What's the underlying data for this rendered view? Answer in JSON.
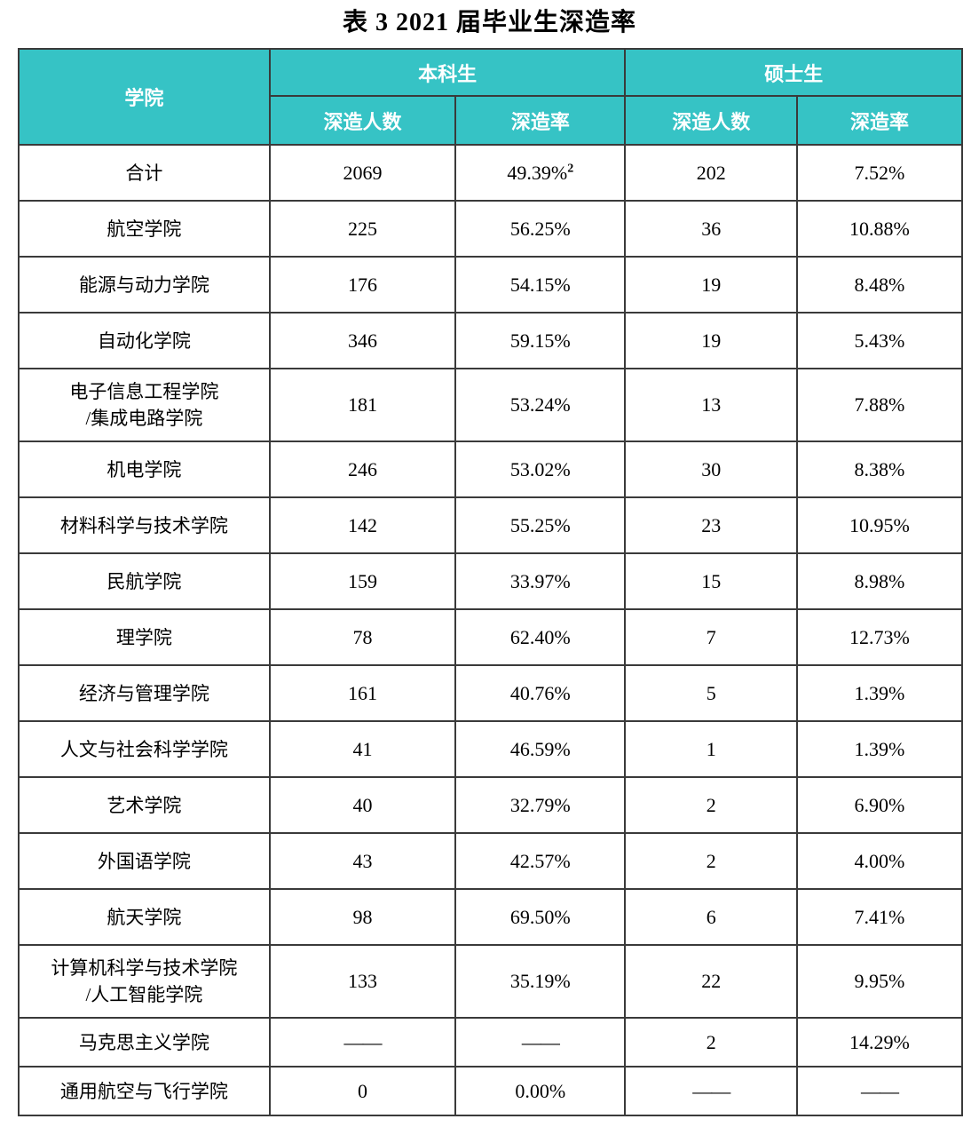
{
  "title": "表 3  2021 届毕业生深造率",
  "colors": {
    "header_bg": "#36c3c5",
    "header_text": "#ffffff",
    "border": "#3a3a3a",
    "body_text": "#000000"
  },
  "table": {
    "headers": {
      "college": "学院",
      "undergrad_group": "本科生",
      "master_group": "硕士生",
      "count_label": "深造人数",
      "rate_label": "深造率"
    },
    "rows": [
      {
        "college_line1": "合计",
        "ug_count": "2069",
        "ug_rate": "49.39%",
        "ug_rate_sup": "2",
        "ms_count": "202",
        "ms_rate": "7.52%"
      },
      {
        "college_line1": "航空学院",
        "ug_count": "225",
        "ug_rate": "56.25%",
        "ms_count": "36",
        "ms_rate": "10.88%"
      },
      {
        "college_line1": "能源与动力学院",
        "ug_count": "176",
        "ug_rate": "54.15%",
        "ms_count": "19",
        "ms_rate": "8.48%"
      },
      {
        "college_line1": "自动化学院",
        "ug_count": "346",
        "ug_rate": "59.15%",
        "ms_count": "19",
        "ms_rate": "5.43%"
      },
      {
        "college_line1": "电子信息工程学院",
        "college_line2": "/集成电路学院",
        "ug_count": "181",
        "ug_rate": "53.24%",
        "ms_count": "13",
        "ms_rate": "7.88%"
      },
      {
        "college_line1": "机电学院",
        "ug_count": "246",
        "ug_rate": "53.02%",
        "ms_count": "30",
        "ms_rate": "8.38%"
      },
      {
        "college_line1": "材料科学与技术学院",
        "ug_count": "142",
        "ug_rate": "55.25%",
        "ms_count": "23",
        "ms_rate": "10.95%"
      },
      {
        "college_line1": "民航学院",
        "ug_count": "159",
        "ug_rate": "33.97%",
        "ms_count": "15",
        "ms_rate": "8.98%"
      },
      {
        "college_line1": "理学院",
        "ug_count": "78",
        "ug_rate": "62.40%",
        "ms_count": "7",
        "ms_rate": "12.73%"
      },
      {
        "college_line1": "经济与管理学院",
        "ug_count": "161",
        "ug_rate": "40.76%",
        "ms_count": "5",
        "ms_rate": "1.39%"
      },
      {
        "college_line1": "人文与社会科学学院",
        "ug_count": "41",
        "ug_rate": "46.59%",
        "ms_count": "1",
        "ms_rate": "1.39%"
      },
      {
        "college_line1": "艺术学院",
        "ug_count": "40",
        "ug_rate": "32.79%",
        "ms_count": "2",
        "ms_rate": "6.90%"
      },
      {
        "college_line1": "外国语学院",
        "ug_count": "43",
        "ug_rate": "42.57%",
        "ms_count": "2",
        "ms_rate": "4.00%"
      },
      {
        "college_line1": "航天学院",
        "ug_count": "98",
        "ug_rate": "69.50%",
        "ms_count": "6",
        "ms_rate": "7.41%"
      },
      {
        "college_line1": "计算机科学与技术学院",
        "college_line2": "/人工智能学院",
        "ug_count": "133",
        "ug_rate": "35.19%",
        "ms_count": "22",
        "ms_rate": "9.95%"
      },
      {
        "college_line1": "马克思主义学院",
        "ug_count": "——",
        "ug_rate": "——",
        "ms_count": "2",
        "ms_rate": "14.29%"
      },
      {
        "college_line1": "通用航空与飞行学院",
        "ug_count": "0",
        "ug_rate": "0.00%",
        "ms_count": "——",
        "ms_rate": "——"
      }
    ]
  }
}
